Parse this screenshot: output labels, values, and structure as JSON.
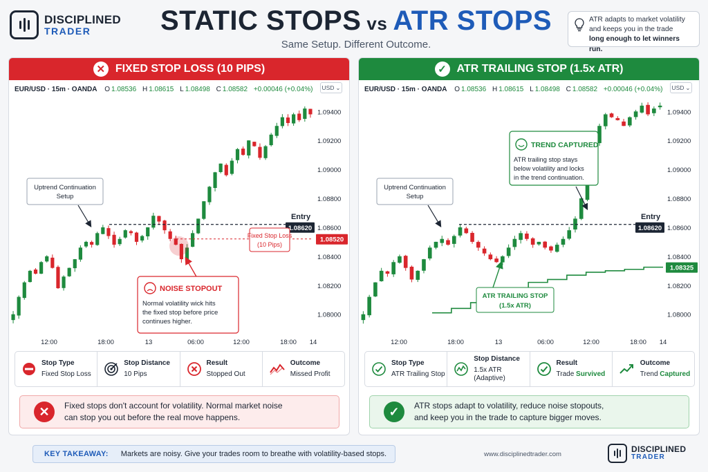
{
  "brand": {
    "line1": "DISCIPLINED",
    "line2": "TRADER",
    "url": "www.disciplinedtrader.com"
  },
  "header": {
    "title_left": "STATIC STOPS",
    "title_vs": "vs",
    "title_right": "ATR STOPS",
    "subtitle": "Same Setup. Different Outcome."
  },
  "tip": {
    "line1": "ATR adapts to market volatility",
    "line2": "and keeps you in the trade",
    "line3_bold": "long enough to let winners run."
  },
  "colors": {
    "red": "#d9262c",
    "green": "#1e8a3e",
    "blue": "#1e5bb8",
    "dark": "#1c2533",
    "up_candle": "#1e8a3e",
    "down_candle": "#d9262c"
  },
  "ohlc": {
    "symbol": "EUR/USD · 15m · OANDA",
    "o_key": "O",
    "o": "1.08536",
    "h_key": "H",
    "h": "1.08615",
    "l_key": "L",
    "l": "1.08498",
    "c_key": "C",
    "c": "1.08582",
    "chg": "+0.00046 (+0.04%)",
    "currency": "USD"
  },
  "left": {
    "header": "FIXED STOP LOSS (10 PIPS)",
    "header_icon": "✕",
    "stats": [
      {
        "icon": "no-entry-icon",
        "label": "Stop Type",
        "value": "Fixed Stop Loss"
      },
      {
        "icon": "target-icon",
        "label": "Stop Distance",
        "value": "10 Pips"
      },
      {
        "icon": "x-circle-icon",
        "label": "Result",
        "value": "Stopped Out"
      },
      {
        "icon": "trend-down-icon",
        "label": "Outcome",
        "value": "Missed Profit"
      }
    ],
    "note_icon": "✕",
    "note_line1": "Fixed stops don't account for volatility. Normal market noise",
    "note_line2": "can stop you out before the real move happens."
  },
  "right": {
    "header": "ATR TRAILING STOP (1.5x ATR)",
    "header_icon": "✓",
    "stats": [
      {
        "icon": "shield-check-icon",
        "label": "Stop Type",
        "value": "ATR Trailing Stop",
        "value2": ""
      },
      {
        "icon": "volatility-icon",
        "label": "Stop Distance",
        "value": "1.5x ATR",
        "value2": "(Adaptive)"
      },
      {
        "icon": "check-circle-icon",
        "label": "Result",
        "value": "Trade ",
        "value_hl": "Survived"
      },
      {
        "icon": "trend-up-icon",
        "label": "Outcome",
        "value": "Trend ",
        "value_hl": "Captured"
      }
    ],
    "note_icon": "✓",
    "note_line1": "ATR stops adapt to volatility, reduce noise stopouts,",
    "note_line2": "and keep you in the trade to capture bigger moves."
  },
  "footer": {
    "takeaway_label": "KEY TAKEAWAY:",
    "takeaway_text": "Markets are noisy. Give your trades room to breathe with volatility-based stops."
  },
  "chart_data": [
    {
      "type": "candlestick",
      "title": "FIXED STOP LOSS (10 PIPS)",
      "x_tick_labels": [
        "12:00",
        "18:00",
        "13",
        "06:00",
        "12:00",
        "18:00",
        "14"
      ],
      "y_tick_labels": [
        "1.09400",
        "1.09200",
        "1.09000",
        "1.08800",
        "1.08600",
        "1.08400",
        "1.08200",
        "1.08000"
      ],
      "ylim": [
        1.0787,
        1.0953
      ],
      "entry": {
        "label": "Entry",
        "value": 1.0862,
        "value_label": "1.08620"
      },
      "stop": {
        "value": 1.0852,
        "value_label": "1.08520",
        "label_line1": "Fixed Stop Loss",
        "label_line2": "(10 Pips)"
      },
      "annotations": [
        {
          "id": "setup",
          "line1": "Uptrend Continuation",
          "line2": "Setup"
        },
        {
          "id": "stopout",
          "title": "NOISE STOPOUT",
          "line1": "Normal volatility wick hits",
          "line2": "the fixed stop before price",
          "line3": "continues higher."
        }
      ],
      "price_path": [
        1.08,
        1.0812,
        1.0822,
        1.083,
        1.0828,
        1.0836,
        1.084,
        1.0832,
        1.0818,
        1.0826,
        1.0832,
        1.0838,
        1.0846,
        1.085,
        1.0848,
        1.0856,
        1.086,
        1.0854,
        1.0848,
        1.0852,
        1.0858,
        1.0856,
        1.085,
        1.0854,
        1.086,
        1.0868,
        1.0864,
        1.0858,
        1.0852,
        1.0848,
        1.0838,
        1.0846,
        1.0856,
        1.0866,
        1.0878,
        1.0888,
        1.0898,
        1.0904,
        1.0896,
        1.0906,
        1.0914,
        1.091,
        1.092,
        1.0916,
        1.0908,
        1.0916,
        1.0924,
        1.093,
        1.0936,
        1.0932,
        1.0938,
        1.0934,
        1.0942,
        1.0938
      ]
    },
    {
      "type": "candlestick",
      "title": "ATR TRAILING STOP (1.5x ATR)",
      "x_tick_labels": [
        "12:00",
        "18:00",
        "13",
        "06:00",
        "12:00",
        "18:00",
        "14"
      ],
      "y_tick_labels": [
        "1.09400",
        "1.09200",
        "1.09000",
        "1.08800",
        "1.08600",
        "1.08400",
        "1.08200",
        "1.08000"
      ],
      "ylim": [
        1.0787,
        1.0953
      ],
      "entry": {
        "label": "Entry",
        "value": 1.0862,
        "value_label": "1.08620"
      },
      "atr_stop": {
        "value_label": "1.08325",
        "label_line1": "ATR TRAILING STOP",
        "label_line2": "(1.5x ATR)",
        "path": [
          1.0801,
          1.0804,
          1.0808,
          1.0812,
          1.0816,
          1.0822,
          1.0824,
          1.0827,
          1.0829,
          1.083,
          1.0831,
          1.08325,
          1.08325
        ]
      },
      "annotations": [
        {
          "id": "setup",
          "line1": "Uptrend Continuation",
          "line2": "Setup"
        },
        {
          "id": "captured",
          "title": "TREND CAPTURED",
          "line1": "ATR trailing stop stays",
          "line2": "below volatility and locks",
          "line3": "in the trend continuation."
        }
      ],
      "price_path": [
        1.08,
        1.0812,
        1.0822,
        1.083,
        1.0828,
        1.0836,
        1.084,
        1.0832,
        1.0824,
        1.083,
        1.0838,
        1.0846,
        1.085,
        1.0852,
        1.0848,
        1.0854,
        1.086,
        1.0856,
        1.085,
        1.0846,
        1.0842,
        1.0838,
        1.0836,
        1.084,
        1.0846,
        1.0852,
        1.0856,
        1.0852,
        1.0848,
        1.085,
        1.0846,
        1.0844,
        1.0848,
        1.0852,
        1.0858,
        1.0866,
        1.088,
        1.09,
        1.0918,
        1.093,
        1.0938,
        1.0936,
        1.0934,
        1.093,
        1.0936,
        1.094,
        1.0944,
        1.0938,
        1.0942,
        1.0944
      ]
    }
  ]
}
